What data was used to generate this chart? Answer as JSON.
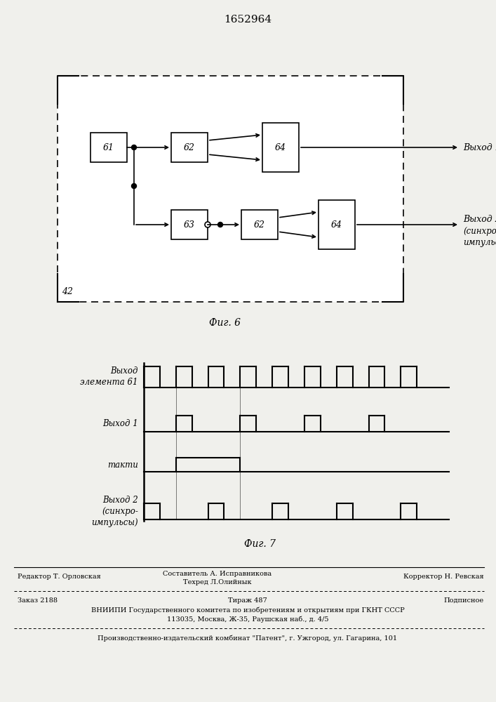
{
  "title": "1652964",
  "fig6_label": "Фиг. 6",
  "fig7_label": "Фиг. 7",
  "background": "#f2f2ee",
  "footer": {
    "line1_left": "Редактор Т. Орловская",
    "line1_mid1": "Составитель А. Исправникова",
    "line1_mid2": "Техред Л.Олийнык",
    "line1_right": "Корректор Н. Ревская",
    "line2_left": "Заказ 2188",
    "line2_mid": "Тираж 487",
    "line2_right": "Подписное",
    "line3": "ВНИИПИ Государственного комитета по изобретениям и открытиям при ГКНТ СССР",
    "line4": "113035, Москва, Ж-35, Раушская наб., д. 4/5",
    "line5": "Производственно-издательский комбинат \"Патент\", г. Ужгород, ул. Гагарина, 101"
  }
}
